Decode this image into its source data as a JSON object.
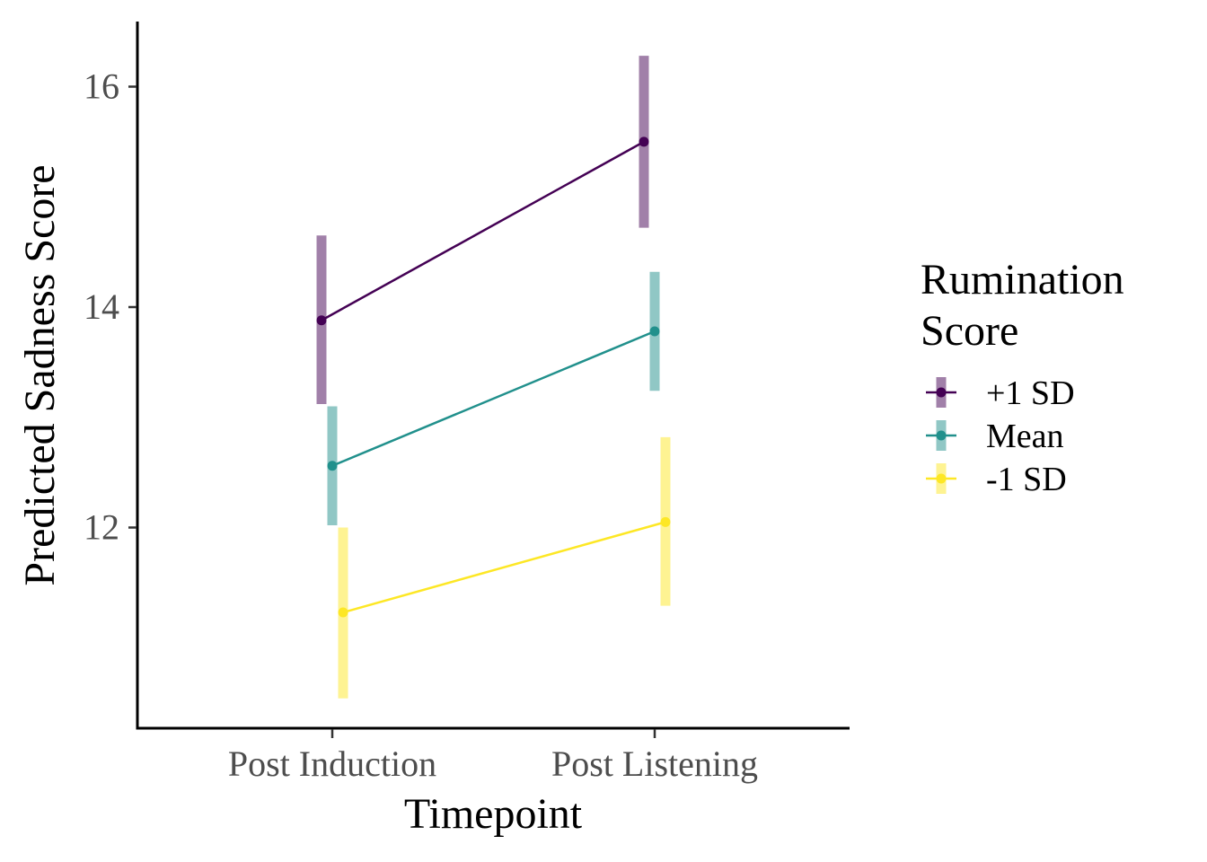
{
  "chart_data": {
    "type": "line",
    "title": "",
    "xlabel": "Timepoint",
    "ylabel": "Predicted Sadness Score",
    "categories": [
      "Post Induction",
      "Post Listening"
    ],
    "y_ticks": [
      "12",
      "14",
      "16"
    ],
    "ylim": [
      10.2,
      16.6
    ],
    "grid": false,
    "legend": {
      "title_lines": [
        "Rumination",
        "Score"
      ],
      "placement": "right"
    },
    "series": [
      {
        "name": "+1 SD",
        "color": "#440154",
        "values": [
          13.88,
          15.5
        ],
        "ci_low": [
          13.12,
          14.72
        ],
        "ci_high": [
          14.65,
          16.28
        ]
      },
      {
        "name": "Mean",
        "color": "#21908C",
        "values": [
          12.56,
          13.78
        ],
        "ci_low": [
          12.02,
          13.24
        ],
        "ci_high": [
          13.1,
          14.32
        ]
      },
      {
        "name": "-1 SD",
        "color": "#FDE725",
        "values": [
          11.23,
          12.05
        ],
        "ci_low": [
          10.45,
          11.29
        ],
        "ci_high": [
          12.0,
          12.82
        ]
      }
    ]
  }
}
